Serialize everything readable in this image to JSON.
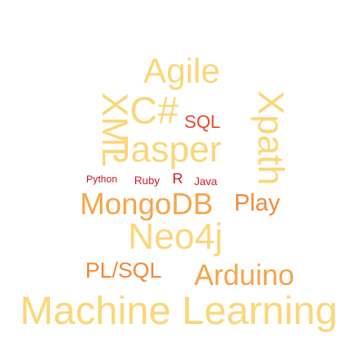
{
  "colors": {
    "light_yellow": "#fbd77b",
    "orange": "#f5a54a",
    "deep_orange": "#ef8a3b",
    "red": "#e4492e",
    "dark_red": "#c7172a"
  },
  "words": {
    "agile": "Agile",
    "csharp": "C#",
    "sql": "SQL",
    "xml": "XML",
    "jasper": "Jasper",
    "xpath": "Xpath",
    "python": "Python",
    "ruby": "Ruby",
    "r": "R",
    "java": "Java",
    "mongodb": "MongoDB",
    "play": "Play",
    "neo4j": "Neo4j",
    "plsql": "PL/SQL",
    "arduino": "Arduino",
    "machine_learning": "Machine Learning"
  }
}
